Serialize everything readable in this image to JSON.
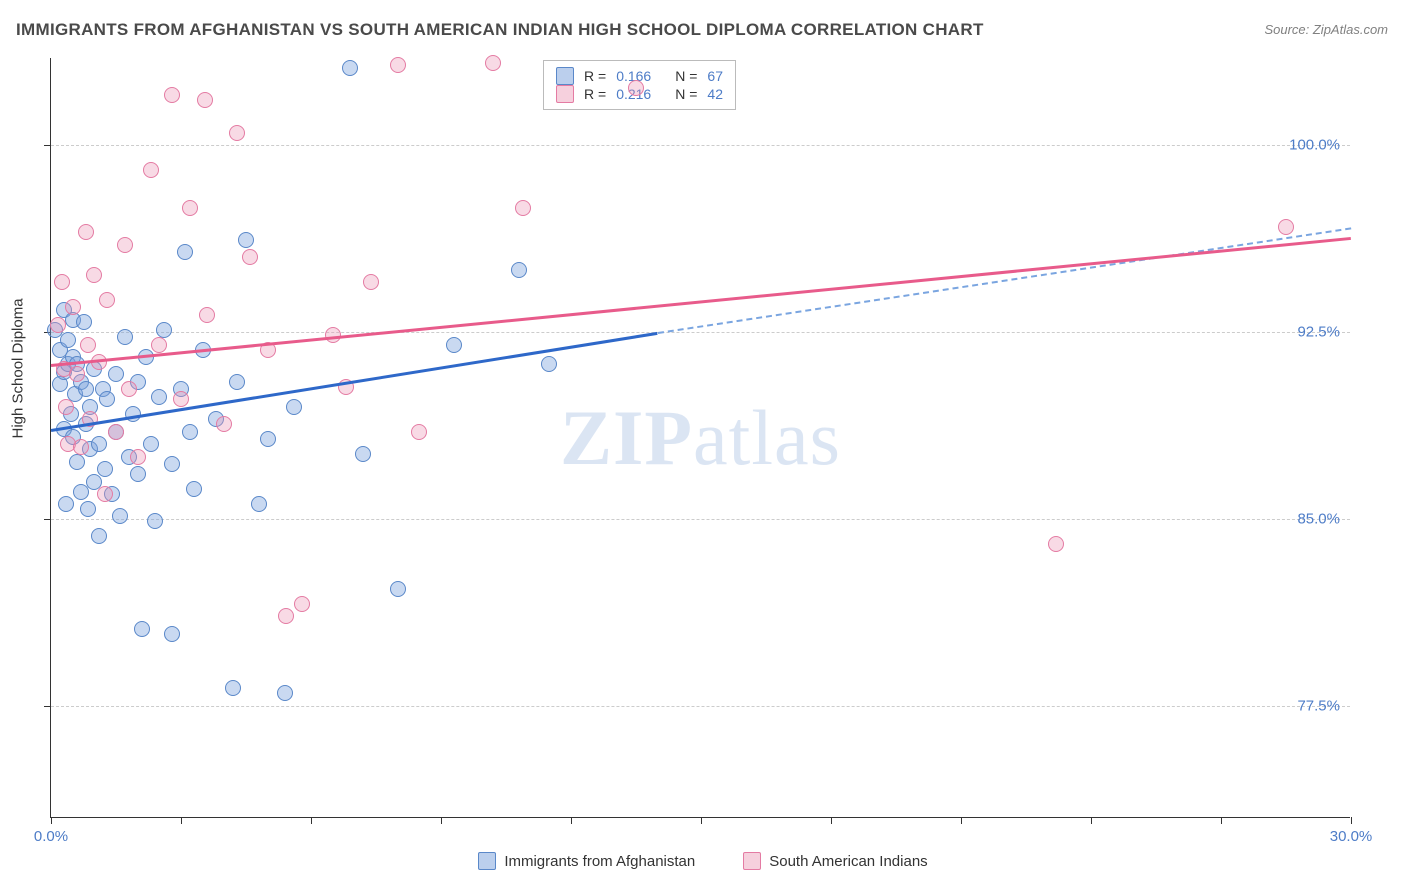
{
  "title": "IMMIGRANTS FROM AFGHANISTAN VS SOUTH AMERICAN INDIAN HIGH SCHOOL DIPLOMA CORRELATION CHART",
  "source": "Source: ZipAtlas.com",
  "y_label": "High School Diploma",
  "watermark_bold": "ZIP",
  "watermark_light": "atlas",
  "chart": {
    "type": "scatter",
    "xlim": [
      0.0,
      30.0
    ],
    "ylim": [
      73.0,
      103.5
    ],
    "x_ticks": [
      0.0,
      3.0,
      6.0,
      9.0,
      12.0,
      15.0,
      18.0,
      21.0,
      24.0,
      27.0,
      30.0
    ],
    "x_tick_labels": {
      "0": "0.0%",
      "30": "30.0%"
    },
    "y_ticks": [
      77.5,
      85.0,
      92.5,
      100.0
    ],
    "y_tick_labels": [
      "77.5%",
      "85.0%",
      "92.5%",
      "100.0%"
    ],
    "grid_color": "#cccccc",
    "axis_color": "#333333",
    "label_color": "#4d7cc7",
    "marker_size": 16,
    "background_color": "#ffffff"
  },
  "series": [
    {
      "name": "Immigrants from Afghanistan",
      "color_fill": "rgba(120,160,220,0.4)",
      "color_stroke": "#5a88c9",
      "trend_color": "#2e68c9",
      "R": "0.166",
      "N": "67",
      "trend": {
        "x1": 0.0,
        "y1": 88.6,
        "x2": 14.0,
        "y2": 92.5,
        "dash_to_x": 30.0,
        "dash_to_y": 96.7
      },
      "points": [
        [
          0.1,
          92.6
        ],
        [
          0.2,
          90.4
        ],
        [
          0.2,
          91.8
        ],
        [
          0.3,
          93.4
        ],
        [
          0.3,
          88.6
        ],
        [
          0.3,
          90.9
        ],
        [
          0.35,
          85.6
        ],
        [
          0.4,
          92.2
        ],
        [
          0.4,
          91.2
        ],
        [
          0.45,
          89.2
        ],
        [
          0.5,
          93.0
        ],
        [
          0.5,
          88.3
        ],
        [
          0.5,
          91.5
        ],
        [
          0.55,
          90.0
        ],
        [
          0.6,
          91.2
        ],
        [
          0.6,
          87.3
        ],
        [
          0.7,
          90.5
        ],
        [
          0.7,
          86.1
        ],
        [
          0.75,
          92.9
        ],
        [
          0.8,
          88.8
        ],
        [
          0.8,
          90.2
        ],
        [
          0.85,
          85.4
        ],
        [
          0.9,
          87.8
        ],
        [
          0.9,
          89.5
        ],
        [
          1.0,
          91.0
        ],
        [
          1.0,
          86.5
        ],
        [
          1.1,
          88.0
        ],
        [
          1.1,
          84.3
        ],
        [
          1.2,
          90.2
        ],
        [
          1.25,
          87.0
        ],
        [
          1.3,
          89.8
        ],
        [
          1.4,
          86.0
        ],
        [
          1.5,
          88.5
        ],
        [
          1.5,
          90.8
        ],
        [
          1.6,
          85.1
        ],
        [
          1.7,
          92.3
        ],
        [
          1.8,
          87.5
        ],
        [
          1.9,
          89.2
        ],
        [
          2.0,
          90.5
        ],
        [
          2.0,
          86.8
        ],
        [
          2.1,
          80.6
        ],
        [
          2.2,
          91.5
        ],
        [
          2.3,
          88.0
        ],
        [
          2.4,
          84.9
        ],
        [
          2.5,
          89.9
        ],
        [
          2.6,
          92.6
        ],
        [
          2.8,
          80.4
        ],
        [
          2.8,
          87.2
        ],
        [
          3.0,
          90.2
        ],
        [
          3.1,
          95.7
        ],
        [
          3.2,
          88.5
        ],
        [
          3.3,
          86.2
        ],
        [
          3.5,
          91.8
        ],
        [
          3.8,
          89.0
        ],
        [
          4.2,
          78.2
        ],
        [
          4.3,
          90.5
        ],
        [
          4.5,
          96.2
        ],
        [
          4.8,
          85.6
        ],
        [
          5.0,
          88.2
        ],
        [
          5.4,
          78.0
        ],
        [
          5.6,
          89.5
        ],
        [
          6.9,
          103.1
        ],
        [
          7.2,
          87.6
        ],
        [
          8.0,
          82.2
        ],
        [
          9.3,
          92.0
        ],
        [
          10.8,
          95.0
        ],
        [
          11.5,
          91.2
        ]
      ]
    },
    {
      "name": "South American Indians",
      "color_fill": "rgba(235,150,180,0.35)",
      "color_stroke": "#e47ba3",
      "trend_color": "#e85b8b",
      "R": "0.216",
      "N": "42",
      "trend": {
        "x1": 0.0,
        "y1": 91.2,
        "x2": 30.0,
        "y2": 96.3
      },
      "points": [
        [
          0.15,
          92.8
        ],
        [
          0.25,
          94.5
        ],
        [
          0.3,
          91.0
        ],
        [
          0.35,
          89.5
        ],
        [
          0.4,
          88.0
        ],
        [
          0.5,
          93.5
        ],
        [
          0.6,
          90.8
        ],
        [
          0.7,
          87.9
        ],
        [
          0.8,
          96.5
        ],
        [
          0.85,
          92.0
        ],
        [
          0.9,
          89.0
        ],
        [
          1.0,
          94.8
        ],
        [
          1.1,
          91.3
        ],
        [
          1.25,
          86.0
        ],
        [
          1.3,
          93.8
        ],
        [
          1.5,
          88.5
        ],
        [
          1.7,
          96.0
        ],
        [
          1.8,
          90.2
        ],
        [
          2.0,
          87.5
        ],
        [
          2.3,
          99.0
        ],
        [
          2.5,
          92.0
        ],
        [
          2.8,
          102.0
        ],
        [
          3.0,
          89.8
        ],
        [
          3.2,
          97.5
        ],
        [
          3.55,
          101.8
        ],
        [
          3.6,
          93.2
        ],
        [
          4.0,
          88.8
        ],
        [
          4.3,
          100.5
        ],
        [
          4.6,
          95.5
        ],
        [
          5.0,
          91.8
        ],
        [
          5.42,
          81.1
        ],
        [
          5.8,
          81.6
        ],
        [
          6.5,
          92.4
        ],
        [
          6.8,
          90.3
        ],
        [
          7.38,
          94.5
        ],
        [
          8.0,
          103.2
        ],
        [
          8.5,
          88.5
        ],
        [
          10.2,
          103.3
        ],
        [
          10.9,
          97.5
        ],
        [
          13.5,
          102.3
        ],
        [
          23.2,
          84.0
        ],
        [
          28.5,
          96.7
        ]
      ]
    }
  ],
  "stats_legend": {
    "rows": [
      {
        "swatch": "blue",
        "R": "0.166",
        "N": "67"
      },
      {
        "swatch": "pink",
        "R": "0.216",
        "N": "42"
      }
    ]
  },
  "bottom_legend": [
    {
      "swatch": "blue",
      "label": "Immigrants from Afghanistan"
    },
    {
      "swatch": "pink",
      "label": "South American Indians"
    }
  ]
}
